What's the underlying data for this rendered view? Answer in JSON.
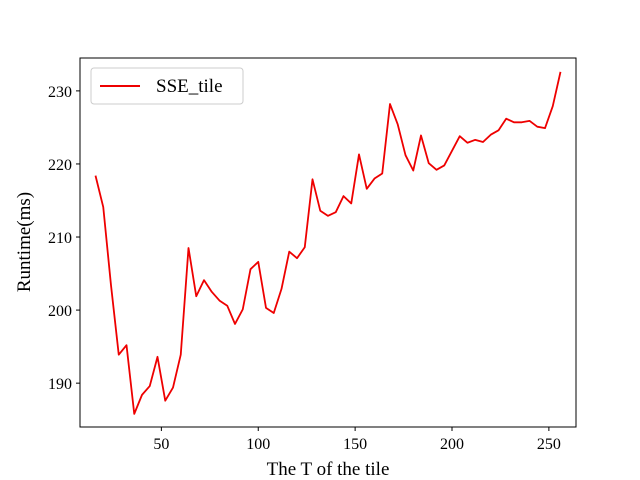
{
  "chart_data": {
    "type": "line",
    "title": "",
    "xlabel": "The T of the tile",
    "ylabel": "Runtime(ms)",
    "xlim": [
      8,
      264
    ],
    "ylim": [
      184,
      234.5
    ],
    "xticks": [
      50,
      100,
      150,
      200,
      250
    ],
    "yticks": [
      190,
      200,
      210,
      220,
      230
    ],
    "grid": false,
    "legend_position": "top-left",
    "series": [
      {
        "name": "SSE_tile",
        "color": "#ee0000",
        "x": [
          16,
          20,
          24,
          28,
          32,
          36,
          40,
          44,
          48,
          52,
          56,
          60,
          64,
          68,
          72,
          76,
          80,
          84,
          88,
          92,
          96,
          100,
          104,
          108,
          112,
          116,
          120,
          124,
          128,
          132,
          136,
          140,
          144,
          148,
          152,
          156,
          160,
          164,
          168,
          172,
          176,
          180,
          184,
          188,
          192,
          196,
          200,
          204,
          208,
          212,
          216,
          220,
          224,
          228,
          232,
          236,
          240,
          244,
          248,
          252,
          256
        ],
        "y": [
          218.4,
          214.1,
          203.4,
          193.9,
          195.2,
          185.8,
          188.4,
          189.6,
          193.6,
          187.6,
          189.4,
          193.9,
          208.5,
          201.9,
          204.1,
          202.5,
          201.3,
          200.6,
          198.1,
          200.1,
          205.6,
          206.6,
          200.3,
          199.6,
          202.9,
          208.0,
          207.1,
          208.6,
          217.9,
          213.6,
          212.9,
          213.4,
          215.6,
          214.6,
          221.3,
          216.6,
          218.0,
          218.7,
          228.2,
          225.4,
          221.2,
          219.1,
          223.9,
          220.1,
          219.2,
          219.8,
          221.8,
          223.8,
          222.9,
          223.3,
          223.0,
          224.0,
          224.6,
          226.2,
          225.7,
          225.7,
          225.9,
          225.1,
          224.9,
          227.9,
          232.6
        ]
      }
    ]
  }
}
